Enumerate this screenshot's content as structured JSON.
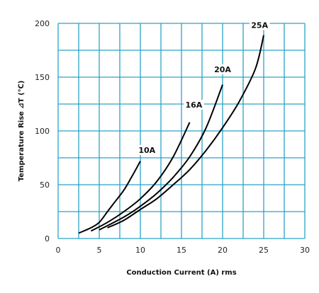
{
  "chart_data": {
    "type": "line",
    "title": "",
    "xlabel": "Conduction Current (A) rms",
    "ylabel": "Temperature Rise ⊿T (℃)",
    "xlim": [
      0,
      30
    ],
    "ylim": [
      0,
      200
    ],
    "x_ticks": [
      0,
      5,
      10,
      15,
      20,
      25,
      30
    ],
    "y_ticks": [
      0,
      50,
      100,
      150,
      200
    ],
    "grid": true,
    "grid_color": "#29a3c8",
    "line_color": "#000000",
    "legend": "none",
    "series": [
      {
        "name": "10A",
        "points": [
          [
            2.5,
            5
          ],
          [
            4,
            10
          ],
          [
            5,
            15
          ],
          [
            6,
            25
          ],
          [
            7,
            35
          ],
          [
            8,
            45
          ],
          [
            9,
            58
          ],
          [
            10,
            72
          ]
        ],
        "label_at": [
          10.8,
          81
        ]
      },
      {
        "name": "16A",
        "points": [
          [
            4,
            7
          ],
          [
            6,
            15
          ],
          [
            8,
            25
          ],
          [
            10,
            37
          ],
          [
            12,
            53
          ],
          [
            14,
            76
          ],
          [
            16,
            108
          ]
        ],
        "label_at": [
          16.5,
          123
        ]
      },
      {
        "name": "20A",
        "points": [
          [
            5,
            8
          ],
          [
            8,
            20
          ],
          [
            10,
            30
          ],
          [
            12,
            42
          ],
          [
            14,
            57
          ],
          [
            16,
            76
          ],
          [
            18,
            103
          ],
          [
            20,
            143
          ]
        ],
        "label_at": [
          20,
          156
        ]
      },
      {
        "name": "25A",
        "points": [
          [
            6,
            10
          ],
          [
            8,
            17
          ],
          [
            10,
            27
          ],
          [
            12,
            37
          ],
          [
            14,
            50
          ],
          [
            16,
            64
          ],
          [
            18,
            82
          ],
          [
            20,
            103
          ],
          [
            22,
            127
          ],
          [
            24,
            158
          ],
          [
            25,
            189
          ]
        ],
        "label_at": [
          24.5,
          197
        ]
      }
    ]
  }
}
